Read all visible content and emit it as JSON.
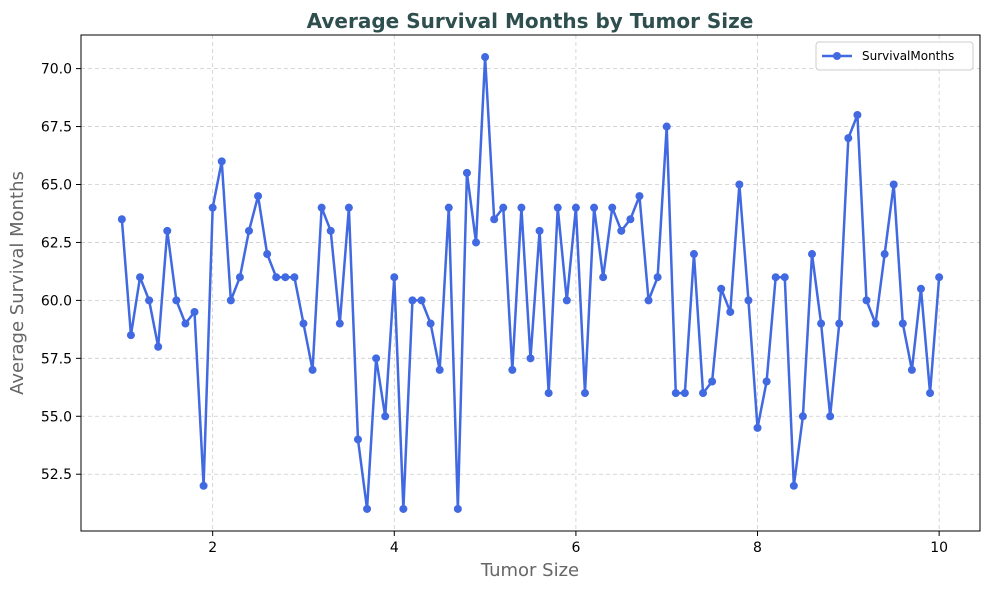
{
  "chart_data": {
    "type": "line",
    "title": "Average Survival Months by Tumor Size",
    "xlabel": "Tumor Size",
    "ylabel": "Average Survival Months",
    "xlim": [
      0.55,
      10.45
    ],
    "ylim": [
      50.05,
      71.45
    ],
    "xticks": [
      2,
      4,
      6,
      8,
      10
    ],
    "xtick_labels": [
      "2",
      "4",
      "6",
      "8",
      "10"
    ],
    "yticks": [
      52.5,
      55.0,
      57.5,
      60.0,
      62.5,
      65.0,
      67.5,
      70.0
    ],
    "ytick_labels": [
      "52.5",
      "55.0",
      "57.5",
      "60.0",
      "62.5",
      "65.0",
      "67.5",
      "70.0"
    ],
    "grid": true,
    "legend_position": "top-right",
    "series": [
      {
        "name": "SurvivalMonths",
        "color": "#4169e1",
        "x": [
          1.0,
          1.1,
          1.2,
          1.3,
          1.4,
          1.5,
          1.6,
          1.7,
          1.8,
          1.9,
          2.0,
          2.1,
          2.2,
          2.3,
          2.4,
          2.5,
          2.6,
          2.7,
          2.8,
          2.9,
          3.0,
          3.1,
          3.2,
          3.3,
          3.4,
          3.5,
          3.6,
          3.7,
          3.8,
          3.9,
          4.0,
          4.1,
          4.2,
          4.3,
          4.4,
          4.5,
          4.6,
          4.7,
          4.8,
          4.9,
          5.0,
          5.1,
          5.2,
          5.3,
          5.4,
          5.5,
          5.6,
          5.7,
          5.8,
          5.9,
          6.0,
          6.1,
          6.2,
          6.3,
          6.4,
          6.5,
          6.6,
          6.7,
          6.8,
          6.9,
          7.0,
          7.1,
          7.2,
          7.3,
          7.4,
          7.5,
          7.6,
          7.7,
          7.8,
          7.9,
          8.0,
          8.1,
          8.2,
          8.3,
          8.4,
          8.5,
          8.6,
          8.7,
          8.8,
          8.9,
          9.0,
          9.1,
          9.2,
          9.3,
          9.4,
          9.5,
          9.6,
          9.7,
          9.8,
          9.9,
          10.0
        ],
        "y": [
          63.5,
          58.5,
          61.0,
          60.0,
          58.0,
          63.0,
          60.0,
          59.0,
          59.5,
          52.0,
          64.0,
          66.0,
          60.0,
          61.0,
          63.0,
          64.5,
          62.0,
          61.0,
          61.0,
          61.0,
          59.0,
          57.0,
          64.0,
          63.0,
          59.0,
          64.0,
          54.0,
          51.0,
          57.5,
          55.0,
          61.0,
          51.0,
          60.0,
          60.0,
          59.0,
          57.0,
          64.0,
          51.0,
          65.5,
          62.5,
          70.5,
          63.5,
          64.0,
          57.0,
          64.0,
          57.5,
          63.0,
          56.0,
          64.0,
          60.0,
          64.0,
          56.0,
          64.0,
          61.0,
          64.0,
          63.0,
          63.5,
          64.5,
          60.0,
          61.0,
          67.5,
          56.0,
          56.0,
          62.0,
          56.0,
          56.5,
          60.5,
          59.5,
          65.0,
          60.0,
          54.5,
          56.5,
          61.0,
          61.0,
          52.0,
          55.0,
          62.0,
          59.0,
          55.0,
          59.0,
          67.0,
          68.0,
          60.0,
          59.0,
          62.0,
          65.0,
          59.0,
          57.0,
          60.5,
          56.0,
          61.0
        ]
      }
    ]
  }
}
